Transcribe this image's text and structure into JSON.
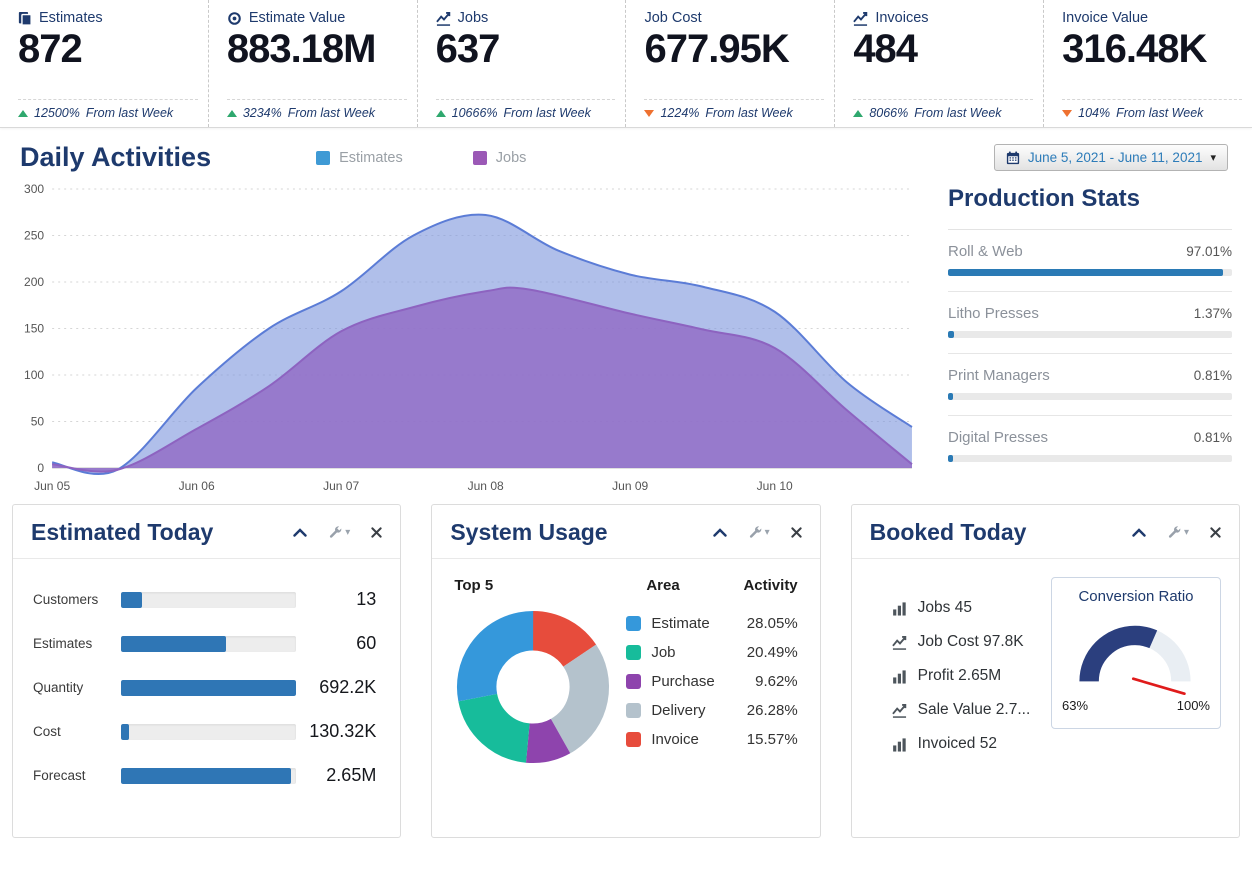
{
  "kpi_bar": {
    "trend_up_color": "#2fa86e",
    "trend_down_color": "#ee7130",
    "cards": [
      {
        "label": "Estimates",
        "icon": "copy-icon",
        "value": "872",
        "trend": "up",
        "change": "12500%",
        "caption": "From last Week"
      },
      {
        "label": "Estimate Value",
        "icon": "target-icon",
        "value": "883.18M",
        "trend": "up",
        "change": "3234%",
        "caption": "From last Week"
      },
      {
        "label": "Jobs",
        "icon": "line-chart-icon",
        "value": "637",
        "trend": "up",
        "change": "10666%",
        "caption": "From last Week"
      },
      {
        "label": "Job Cost",
        "icon": "",
        "value": "677.95K",
        "trend": "down",
        "change": "1224%",
        "caption": "From last Week"
      },
      {
        "label": "Invoices",
        "icon": "line-chart-icon",
        "value": "484",
        "trend": "up",
        "change": "8066%",
        "caption": "From last Week"
      },
      {
        "label": "Invoice Value",
        "icon": "",
        "value": "316.48K",
        "trend": "down",
        "change": "104%",
        "caption": "From last Week"
      }
    ]
  },
  "daily_activities": {
    "title": "Daily Activities",
    "date_range": "June 5, 2021 - June 11, 2021",
    "legend": [
      {
        "label": "Estimates",
        "color": "#3f9ad5"
      },
      {
        "label": "Jobs",
        "color": "#9b59b6"
      }
    ],
    "chart_data": {
      "type": "area",
      "title": "Daily Activities",
      "x_ticks": [
        "Jun 05",
        "Jun 06",
        "Jun 07",
        "Jun 08",
        "Jun 09",
        "Jun 10"
      ],
      "y_ticks": [
        0,
        50,
        100,
        150,
        200,
        250,
        300
      ],
      "ylim": [
        0,
        300
      ],
      "x_max": 5.95,
      "series": [
        {
          "name": "Estimates",
          "stroke": "#5b7cd6",
          "fill": "rgba(124,148,220,0.6)",
          "x": [
            0,
            0.45,
            1,
            1.5,
            2,
            2.5,
            3,
            3.5,
            4,
            4.5,
            5,
            5.5,
            5.95
          ],
          "values": [
            6,
            -2,
            86,
            150,
            190,
            250,
            272,
            234,
            208,
            195,
            168,
            92,
            44
          ]
        },
        {
          "name": "Jobs",
          "stroke": "#8d63c0",
          "fill": "rgba(147,109,199,0.85)",
          "x": [
            0,
            0.45,
            1,
            1.5,
            2,
            2.5,
            3,
            3.3,
            4,
            4.5,
            5,
            5.5,
            5.95
          ],
          "values": [
            4,
            -2,
            42,
            88,
            147,
            173,
            190,
            192,
            166,
            149,
            129,
            62,
            4
          ]
        }
      ]
    }
  },
  "production_stats": {
    "title": "Production Stats",
    "bar_color": "#2a7ab5",
    "items": [
      {
        "label": "Roll & Web",
        "value": "97.01%",
        "pct": 97
      },
      {
        "label": "Litho Presses",
        "value": "1.37%",
        "pct": 2
      },
      {
        "label": "Print Managers",
        "value": "0.81%",
        "pct": 1.6
      },
      {
        "label": "Digital Presses",
        "value": "0.81%",
        "pct": 1.6
      }
    ]
  },
  "estimated_today": {
    "title": "Estimated Today",
    "bar_color": "#2f76b5",
    "rows": [
      {
        "label": "Customers",
        "value": "13",
        "pct": 12
      },
      {
        "label": "Estimates",
        "value": "60",
        "pct": 60
      },
      {
        "label": "Quantity",
        "value": "692.2K",
        "pct": 100
      },
      {
        "label": "Cost",
        "value": "130.32K",
        "pct": 4.5
      },
      {
        "label": "Forecast",
        "value": "2.65M",
        "pct": 97
      }
    ]
  },
  "system_usage": {
    "title": "System Usage",
    "top_label": "Top 5",
    "area_header": "Area",
    "activity_header": "Activity",
    "donut_order": [
      4,
      3,
      2,
      1,
      0
    ],
    "segments": [
      {
        "label": "Estimate",
        "value": "28.05%",
        "pct": 28.05,
        "color": "#3598db"
      },
      {
        "label": "Job",
        "value": "20.49%",
        "pct": 20.49,
        "color": "#17bc9b"
      },
      {
        "label": "Purchase",
        "value": "9.62%",
        "pct": 9.62,
        "color": "#8e44ad"
      },
      {
        "label": "Delivery",
        "value": "26.28%",
        "pct": 26.28,
        "color": "#b4c2cc"
      },
      {
        "label": "Invoice",
        "value": "15.57%",
        "pct": 15.57,
        "color": "#e74c3c"
      }
    ]
  },
  "booked_today": {
    "title": "Booked Today",
    "items": [
      {
        "icon": "bar-chart-icon",
        "text": "Jobs 45"
      },
      {
        "icon": "line-chart-icon",
        "text": "Job Cost 97.8K"
      },
      {
        "icon": "bar-chart-icon",
        "text": "Profit 2.65M"
      },
      {
        "icon": "line-chart-icon",
        "text": "Sale Value 2.7..."
      },
      {
        "icon": "bar-chart-icon",
        "text": "Invoiced 52"
      }
    ],
    "gauge": {
      "title": "Conversion Ratio",
      "min_label": "63%",
      "max_label": "100%",
      "fill_pct": 63,
      "fill_color": "#2b3f7e",
      "track_color": "#e9eef3",
      "needle_color": "#e01b1b"
    }
  }
}
